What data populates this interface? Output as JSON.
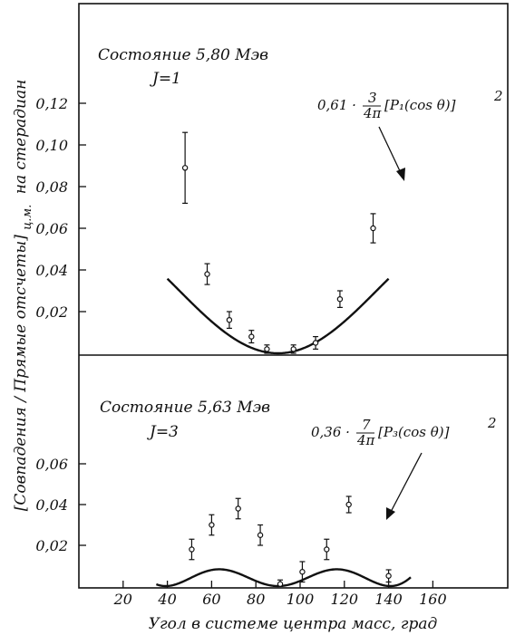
{
  "chart_data": [
    {
      "type": "scatter",
      "panel": "top",
      "state_label": "Состояние 5,80 Мэв",
      "j_label": "J=1",
      "formula_coef": "0,61 ·",
      "formula_num": "3",
      "formula_den": "4π",
      "formula_body": "[P₁(cos θ)]",
      "formula_exp": "2",
      "ylim": [
        0,
        0.14
      ],
      "yticks": [
        0.02,
        0.04,
        0.06,
        0.08,
        0.1,
        0.12
      ],
      "ytick_labels": [
        "0,02",
        "0,04",
        "0,06",
        "0,08",
        "0,10",
        "0,12"
      ],
      "points": [
        {
          "x": 48,
          "y": 0.089,
          "err": 0.017
        },
        {
          "x": 58,
          "y": 0.038,
          "err": 0.005
        },
        {
          "x": 68,
          "y": 0.016,
          "err": 0.004
        },
        {
          "x": 78,
          "y": 0.008,
          "err": 0.003
        },
        {
          "x": 85,
          "y": 0.002,
          "err": 0.002
        },
        {
          "x": 97,
          "y": 0.002,
          "err": 0.002
        },
        {
          "x": 107,
          "y": 0.005,
          "err": 0.003
        },
        {
          "x": 118,
          "y": 0.026,
          "err": 0.004
        },
        {
          "x": 133,
          "y": 0.06,
          "err": 0.007
        }
      ],
      "curve": {
        "amplitude": 0.061,
        "harmonic": 1,
        "x_range": [
          40,
          140
        ]
      }
    },
    {
      "type": "scatter",
      "panel": "bottom",
      "state_label": "Состояние 5,63 Мэв",
      "j_label": "J=3",
      "formula_coef": "0,36 ·",
      "formula_num": "7",
      "formula_den": "4π",
      "formula_body": "[P₃(cos θ)]",
      "formula_exp": "2",
      "ylim": [
        0,
        0.08
      ],
      "yticks": [
        0.02,
        0.04,
        0.06
      ],
      "ytick_labels": [
        "0,02",
        "0,04",
        "0,06"
      ],
      "points": [
        {
          "x": 51,
          "y": 0.018,
          "err": 0.005
        },
        {
          "x": 60,
          "y": 0.03,
          "err": 0.005
        },
        {
          "x": 72,
          "y": 0.038,
          "err": 0.005
        },
        {
          "x": 82,
          "y": 0.025,
          "err": 0.005
        },
        {
          "x": 91,
          "y": 0.001,
          "err": 0.002
        },
        {
          "x": 101,
          "y": 0.007,
          "err": 0.005
        },
        {
          "x": 112,
          "y": 0.018,
          "err": 0.005
        },
        {
          "x": 122,
          "y": 0.04,
          "err": 0.004
        },
        {
          "x": 140,
          "y": 0.005,
          "err": 0.003
        }
      ],
      "curve": {
        "amplitude": 0.0412,
        "harmonic": 3,
        "x_range": [
          35,
          150
        ]
      }
    }
  ],
  "xaxis": {
    "label": "Угол в системе центра масс, град",
    "xlim": [
      0,
      170
    ],
    "ticks": [
      20,
      40,
      60,
      80,
      100,
      120,
      140,
      160
    ],
    "tick_labels": [
      "20",
      "40",
      "60",
      "80",
      "100",
      "120",
      "140",
      "160"
    ]
  },
  "yaxis": {
    "label": "[Совпадения / Прямые отсчеты]",
    "subscript": "ц.м.",
    "suffix": "на стерадиан"
  }
}
